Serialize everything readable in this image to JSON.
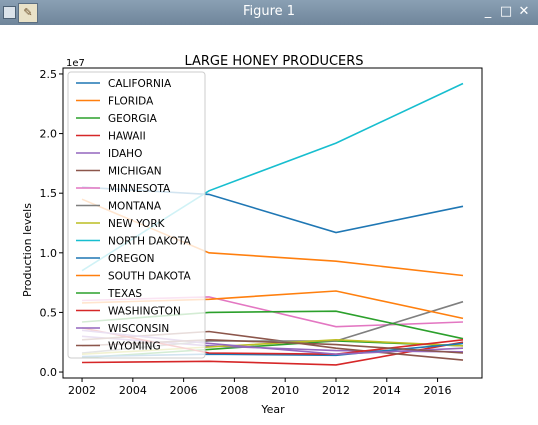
{
  "window": {
    "title": "Figure 1",
    "controls": [
      "_",
      "□",
      "✕"
    ],
    "app_icon": "matplotlib-figure-icon"
  },
  "chart_data": {
    "type": "line",
    "title": "LARGE HONEY PRODUCERS",
    "xlabel": "Year",
    "ylabel": "Production levels",
    "y_offset_label": "1e7",
    "x": [
      2002,
      2007,
      2012,
      2017
    ],
    "xlim": [
      2001.25,
      2017.75
    ],
    "ylim": [
      -0.05,
      2.55
    ],
    "x_ticks": [
      2002,
      2004,
      2006,
      2008,
      2010,
      2012,
      2014,
      2016
    ],
    "y_ticks": [
      0.0,
      0.5,
      1.0,
      1.5,
      2.0,
      2.5
    ],
    "y_tick_labels": [
      "0.0",
      "0.5",
      "1.0",
      "1.5",
      "2.0",
      "2.5"
    ],
    "grid": false,
    "legend_position": "upper-left",
    "series": [
      {
        "name": "CALIFORNIA",
        "color": "#1f77b4",
        "values": [
          1.55,
          1.49,
          1.17,
          1.39
        ]
      },
      {
        "name": "FLORIDA",
        "color": "#ff7f0e",
        "values": [
          1.45,
          1.0,
          0.93,
          0.81
        ]
      },
      {
        "name": "GEORGIA",
        "color": "#2ca02c",
        "values": [
          0.12,
          0.19,
          0.26,
          0.22
        ]
      },
      {
        "name": "HAWAII",
        "color": "#d62728",
        "values": [
          0.08,
          0.09,
          0.06,
          0.25
        ]
      },
      {
        "name": "IDAHO",
        "color": "#9467bd",
        "values": [
          0.3,
          0.22,
          0.18,
          0.17
        ]
      },
      {
        "name": "MICHIGAN",
        "color": "#8c564b",
        "values": [
          0.27,
          0.34,
          0.2,
          0.1
        ]
      },
      {
        "name": "MINNESOTA",
        "color": "#e377c2",
        "values": [
          0.6,
          0.63,
          0.38,
          0.42
        ]
      },
      {
        "name": "MONTANA",
        "color": "#7f7f7f",
        "values": [
          0.16,
          0.26,
          0.26,
          0.59
        ]
      },
      {
        "name": "NEW YORK",
        "color": "#bcbd22",
        "values": [
          0.15,
          0.21,
          0.27,
          0.22
        ]
      },
      {
        "name": "NORTH DAKOTA",
        "color": "#17becf",
        "values": [
          0.85,
          1.52,
          1.92,
          2.42
        ]
      },
      {
        "name": "OREGON",
        "color": "#1f77b4",
        "values": [
          0.13,
          0.15,
          0.14,
          0.24
        ]
      },
      {
        "name": "SOUTH DAKOTA",
        "color": "#ff7f0e",
        "values": [
          0.58,
          0.61,
          0.68,
          0.45
        ]
      },
      {
        "name": "TEXAS",
        "color": "#2ca02c",
        "values": [
          0.42,
          0.5,
          0.51,
          0.28
        ]
      },
      {
        "name": "WASHINGTON",
        "color": "#d62728",
        "values": [
          0.37,
          0.16,
          0.15,
          0.27
        ]
      },
      {
        "name": "WISCONSIN",
        "color": "#9467bd",
        "values": [
          0.35,
          0.24,
          0.15,
          0.2
        ]
      },
      {
        "name": "WYOMING",
        "color": "#8c564b",
        "values": [
          0.22,
          0.27,
          0.23,
          0.16
        ]
      }
    ]
  }
}
